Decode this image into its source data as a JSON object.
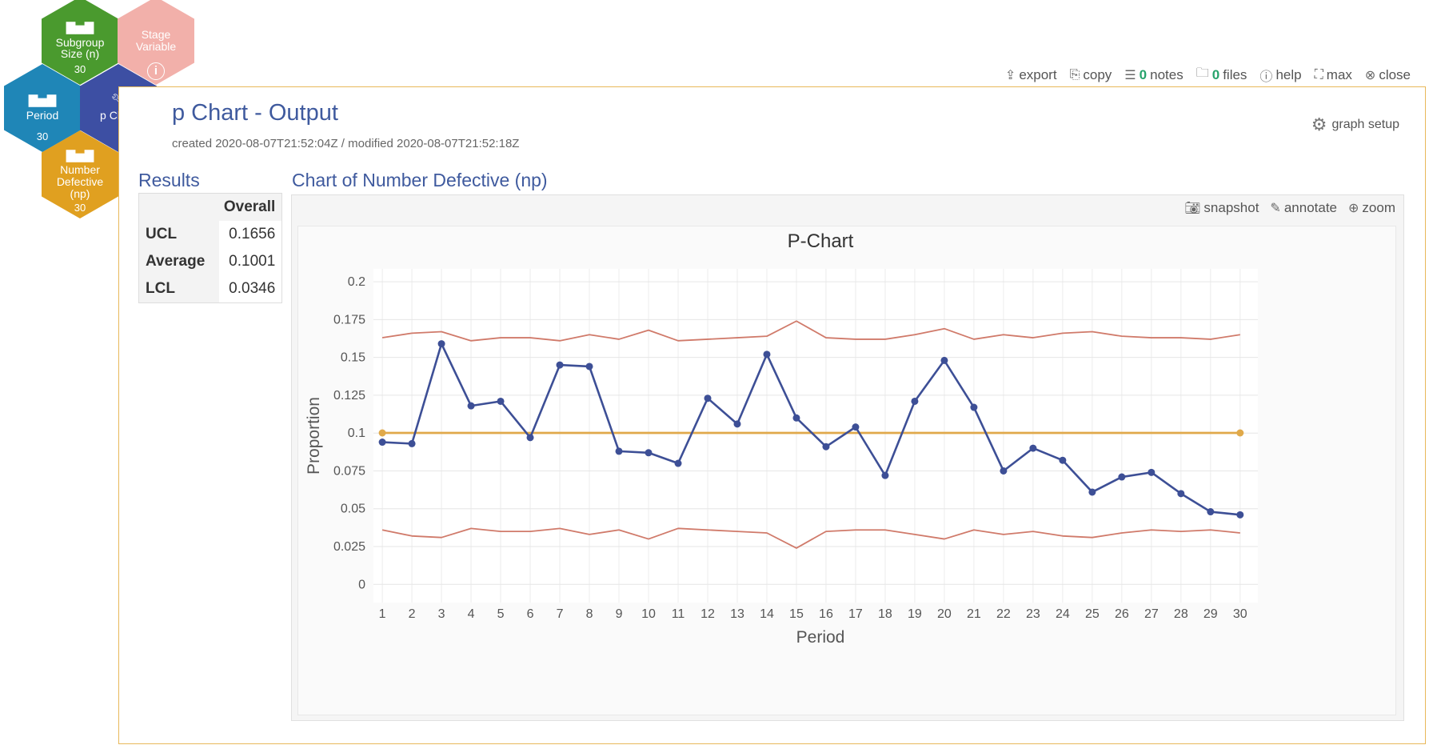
{
  "hexes": {
    "subgroup": {
      "label_line1": "Subgroup",
      "label_line2": "Size (n)",
      "count": "30",
      "color": "#4a9a2e",
      "icon": "bar-chart-icon"
    },
    "stage": {
      "label_line1": "Stage",
      "label_line2": "Variable",
      "color": "#f2b0aa",
      "icon": "info-icon"
    },
    "period": {
      "label": "Period",
      "count": "30",
      "color": "#1f86b7",
      "icon": "bar-chart-icon"
    },
    "pchart": {
      "label": "p Chart",
      "color": "#3d4fa3",
      "icon": "wrench-icon"
    },
    "defective": {
      "label_line1": "Number",
      "label_line2": "Defective",
      "label_line3": "(np)",
      "count": "30",
      "color": "#e0a020",
      "icon": "bar-chart-icon"
    }
  },
  "toolbar": {
    "export": "export",
    "copy": "copy",
    "notes_count": "0",
    "notes": "notes",
    "files_count": "0",
    "files": "files",
    "help": "help",
    "max": "max",
    "close": "close"
  },
  "panel": {
    "title": "p Chart - Output",
    "meta": "created 2020-08-07T21:52:04Z / modified 2020-08-07T21:52:18Z",
    "graph_setup": "graph setup"
  },
  "results": {
    "title": "Results",
    "column": "Overall",
    "rows": [
      {
        "label": "UCL",
        "value": "0.1656"
      },
      {
        "label": "Average",
        "value": "0.1001"
      },
      {
        "label": "LCL",
        "value": "0.0346"
      }
    ]
  },
  "chart_section": {
    "title": "Chart of Number Defective (np)",
    "snapshot": "snapshot",
    "annotate": "annotate",
    "zoom": "zoom"
  },
  "chart_data": {
    "type": "line",
    "title": "P-Chart",
    "xlabel": "Period",
    "ylabel": "Proportion",
    "ylim": [
      0,
      0.2
    ],
    "yticks": [
      0,
      0.025,
      0.05,
      0.075,
      0.1,
      0.125,
      0.15,
      0.175,
      0.2
    ],
    "ytick_labels": [
      "0",
      "0.025",
      "0.05",
      "0.075",
      "0.1",
      "0.125",
      "0.15",
      "0.175",
      "0.2"
    ],
    "x": [
      1,
      2,
      3,
      4,
      5,
      6,
      7,
      8,
      9,
      10,
      11,
      12,
      13,
      14,
      15,
      16,
      17,
      18,
      19,
      20,
      21,
      22,
      23,
      24,
      25,
      26,
      27,
      28,
      29,
      30
    ],
    "grid": true,
    "series": [
      {
        "key": "ucl",
        "color": "#d07a6a",
        "values": [
          0.163,
          0.166,
          0.167,
          0.161,
          0.163,
          0.163,
          0.161,
          0.165,
          0.162,
          0.168,
          0.161,
          0.162,
          0.163,
          0.164,
          0.174,
          0.163,
          0.162,
          0.162,
          0.165,
          0.169,
          0.162,
          0.165,
          0.163,
          0.166,
          0.167,
          0.164,
          0.163,
          0.163,
          0.162,
          0.165
        ]
      },
      {
        "key": "average",
        "color": "#e0a94a",
        "values": [
          0.1001,
          0.1001,
          0.1001,
          0.1001,
          0.1001,
          0.1001,
          0.1001,
          0.1001,
          0.1001,
          0.1001,
          0.1001,
          0.1001,
          0.1001,
          0.1001,
          0.1001,
          0.1001,
          0.1001,
          0.1001,
          0.1001,
          0.1001,
          0.1001,
          0.1001,
          0.1001,
          0.1001,
          0.1001,
          0.1001,
          0.1001,
          0.1001,
          0.1001,
          0.1001
        ]
      },
      {
        "key": "lcl",
        "color": "#d07a6a",
        "values": [
          0.036,
          0.032,
          0.031,
          0.037,
          0.035,
          0.035,
          0.037,
          0.033,
          0.036,
          0.03,
          0.037,
          0.036,
          0.035,
          0.034,
          0.024,
          0.035,
          0.036,
          0.036,
          0.033,
          0.03,
          0.036,
          0.033,
          0.035,
          0.032,
          0.031,
          0.034,
          0.036,
          0.035,
          0.036,
          0.034
        ]
      },
      {
        "key": "proportion",
        "color": "#3d4f96",
        "values": [
          0.094,
          0.093,
          0.159,
          0.118,
          0.121,
          0.097,
          0.145,
          0.144,
          0.088,
          0.087,
          0.08,
          0.123,
          0.106,
          0.152,
          0.11,
          0.091,
          0.104,
          0.072,
          0.121,
          0.148,
          0.117,
          0.075,
          0.09,
          0.082,
          0.061,
          0.071,
          0.074,
          0.06,
          0.048,
          0.046
        ]
      }
    ]
  }
}
